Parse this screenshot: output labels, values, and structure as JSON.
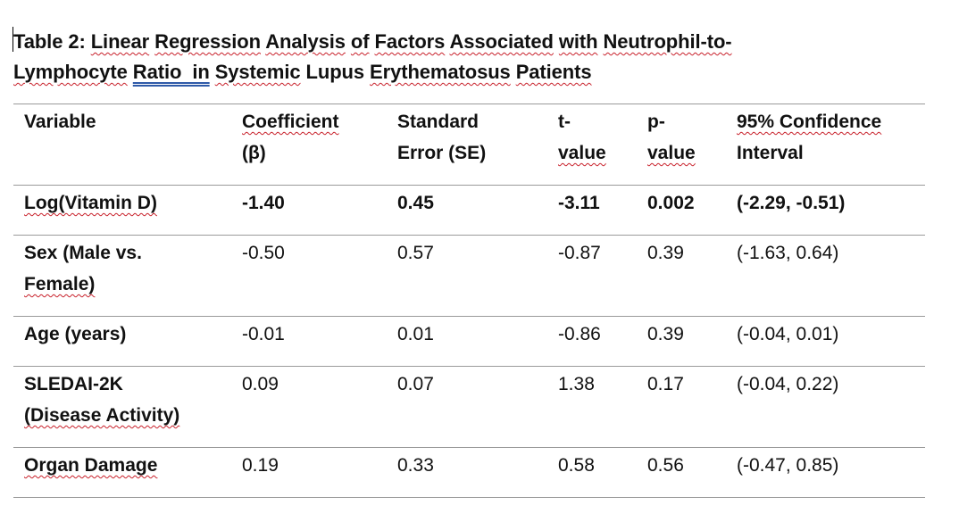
{
  "title": {
    "line1_parts": [
      "Table 2: ",
      "Linear",
      " ",
      "Regression",
      " ",
      "Analysis",
      " ",
      "of",
      " ",
      "Factors",
      " ",
      "Associated",
      " ",
      "with",
      " ",
      "Neutrophil-to-"
    ],
    "line2_parts": [
      "Lymphocyte",
      " ",
      "Ratio  in",
      " ",
      "Systemic",
      " Lupus ",
      "Erythematosus",
      " ",
      "Patients"
    ]
  },
  "table": {
    "headers": {
      "variable": "Variable",
      "coef_1": "Coefficient",
      "coef_2": "(β)",
      "se_1": "Standard",
      "se_2": "Error (SE)",
      "t_1": "t-",
      "t_2": "value",
      "p_1": "p-",
      "p_2": "value",
      "ci_1": "95% Confidence",
      "ci_2": "Interval"
    },
    "rows": [
      {
        "variable_1": "Log(Vitamin D)",
        "variable_2": "",
        "coefficient": "-1.40",
        "se": "0.45",
        "t_value": "-3.11",
        "p_value": "0.002",
        "ci": "(-2.29, -0.51)"
      },
      {
        "variable_1": "Sex (Male vs.",
        "variable_2": "Female)",
        "coefficient": "-0.50",
        "se": "0.57",
        "t_value": "-0.87",
        "p_value": "0.39",
        "ci": "(-1.63, 0.64)"
      },
      {
        "variable_1": "Age (years)",
        "variable_2": "",
        "coefficient": "-0.01",
        "se": "0.01",
        "t_value": "-0.86",
        "p_value": "0.39",
        "ci": "(-0.04, 0.01)"
      },
      {
        "variable_1": "SLEDAI-2K",
        "variable_2": "(Disease Activity)",
        "coefficient": "0.09",
        "se": "0.07",
        "t_value": "1.38",
        "p_value": "0.17",
        "ci": "(-0.04, 0.22)"
      },
      {
        "variable_1": "Organ Damage",
        "variable_2": "",
        "coefficient": "0.19",
        "se": "0.33",
        "t_value": "0.58",
        "p_value": "0.56",
        "ci": "(-0.47, 0.85)"
      }
    ]
  },
  "colors": {
    "spellcheck_underline": "#c8202a",
    "grammar_underline": "#2f5aa8",
    "rule_line": "#9a9a9a",
    "text": "#111111"
  }
}
